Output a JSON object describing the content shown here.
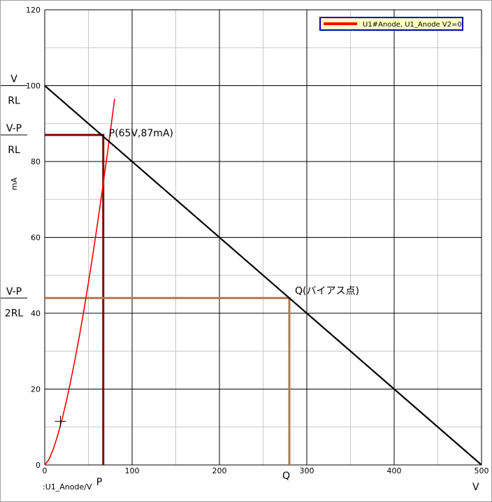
{
  "chart_data": {
    "type": "line",
    "xlabel": "V",
    "ylabel": "mA",
    "x_trace_label": ":U1_Anode/V",
    "xlim": [
      0,
      500
    ],
    "ylim": [
      0,
      120
    ],
    "x_ticks": [
      0,
      100,
      200,
      300,
      400,
      500
    ],
    "y_ticks": [
      0,
      20,
      40,
      60,
      80,
      100,
      120
    ],
    "grid": true,
    "legend_position": "top-right",
    "series": [
      {
        "name": "U1#Anode, U1_Anode V2=0",
        "color": "#ff0000",
        "x": [
          0,
          5,
          10,
          15,
          20,
          25,
          30,
          35,
          40,
          45,
          50,
          55,
          60,
          65,
          70,
          75,
          80
        ],
        "y": [
          0,
          1.5,
          4.3,
          7.9,
          12.2,
          17.0,
          22.4,
          28.2,
          34.4,
          41.0,
          48.0,
          55.3,
          63.0,
          71.0,
          79.2,
          87.7,
          96.5
        ]
      },
      {
        "color": "#000000",
        "x": [
          0,
          500
        ],
        "y": [
          100,
          0
        ]
      }
    ],
    "guides": [
      {
        "color": "#800000",
        "points": [
          [
            0,
            87
          ],
          [
            67,
            87
          ],
          [
            67,
            0
          ]
        ]
      },
      {
        "color": "#b07850",
        "points": [
          [
            0,
            44
          ],
          [
            280,
            44
          ],
          [
            280,
            0
          ]
        ]
      }
    ],
    "annotations": {
      "point_p": {
        "text": "P(65V,87mA)",
        "x": 67,
        "y": 87
      },
      "point_q": {
        "text": "Q(バイアス点)",
        "x": 280,
        "y": 44
      },
      "cursor": {
        "x": 18,
        "y": 11.5
      },
      "x_marker_p": {
        "text": "P",
        "x": 67
      },
      "x_marker_q": {
        "text": "Q",
        "x": 280
      }
    },
    "side_labels": [
      {
        "numerator": "V",
        "denominator": "RL",
        "y": 100
      },
      {
        "numerator": "V-P",
        "denominator": "RL",
        "y": 87
      },
      {
        "numerator": "V-P",
        "denominator": "2RL",
        "y": 44
      }
    ],
    "colors": {
      "grid": "#000000",
      "minor_grid": "#c8c8c8",
      "legend_border": "#0000c0",
      "legend_bg": "#ffffc8"
    }
  }
}
